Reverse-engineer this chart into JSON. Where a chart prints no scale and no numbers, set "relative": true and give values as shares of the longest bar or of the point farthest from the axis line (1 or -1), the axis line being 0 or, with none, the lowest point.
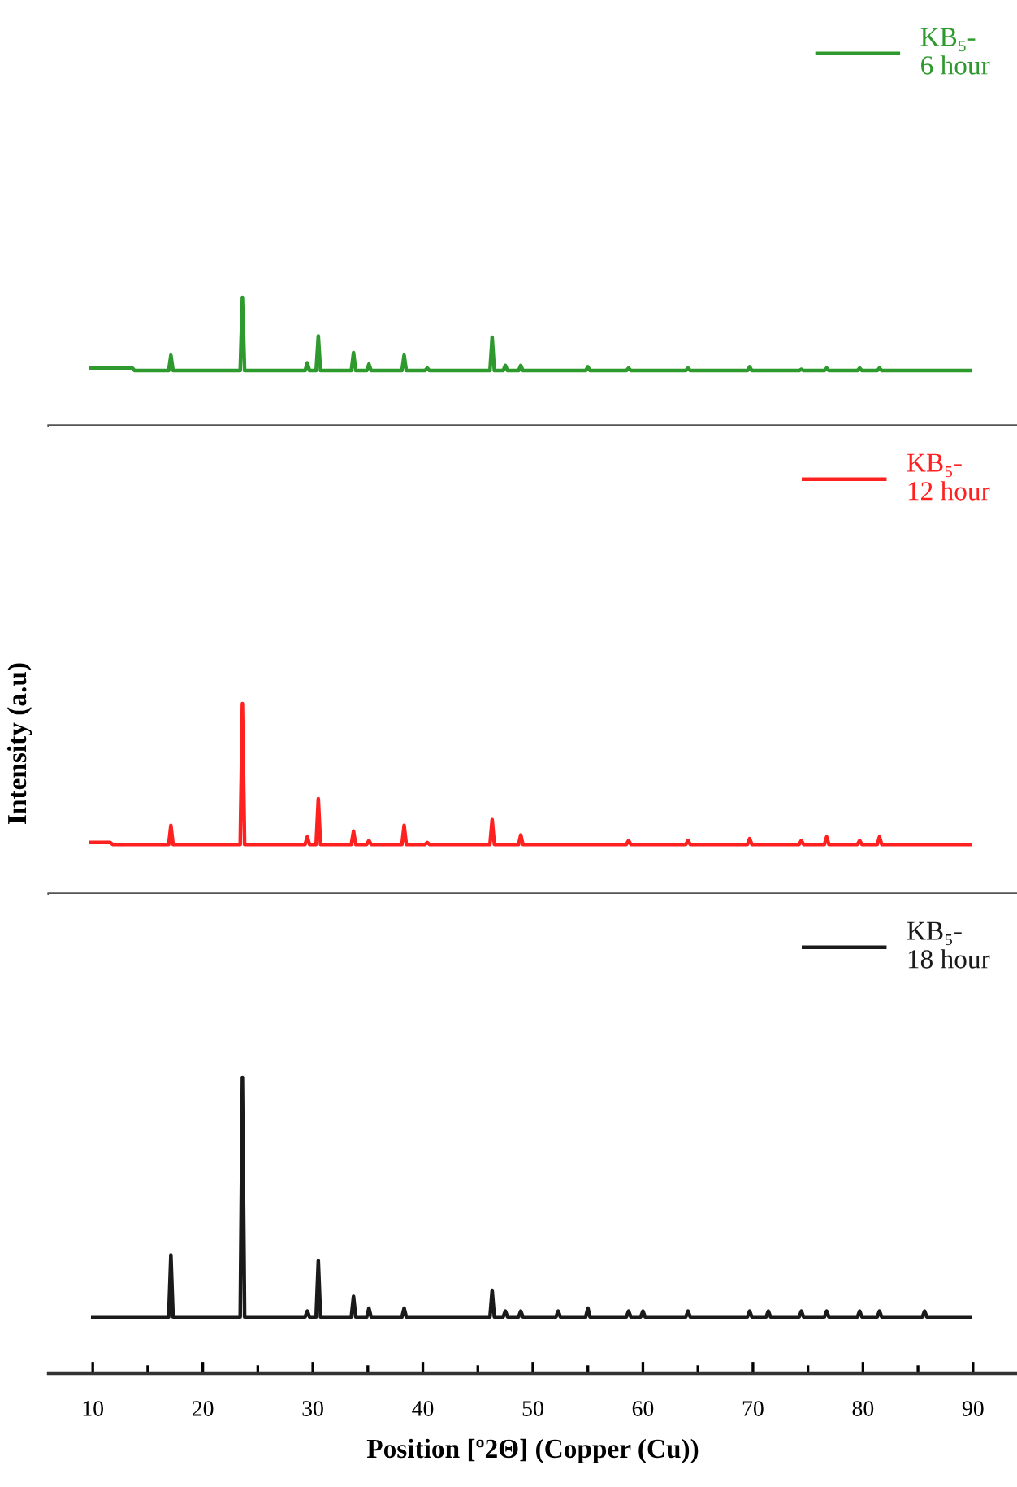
{
  "chart_data": [
    {
      "type": "line",
      "relative": true,
      "xlim": [
        6,
        94
      ],
      "tick_labels": false,
      "legend": "top right",
      "series": [
        {
          "name": "KB₅-\n6 hour",
          "color": "#2e9a2e",
          "x": [
            9.8,
            13.6,
            13.8,
            16.9,
            17.1,
            17.3,
            23.4,
            23.6,
            23.8,
            29.3,
            29.5,
            29.7,
            30.3,
            30.5,
            30.7,
            33.5,
            33.7,
            33.9,
            34.9,
            35.1,
            35.3,
            38.1,
            38.3,
            38.5,
            40.2,
            40.4,
            40.6,
            46.1,
            46.3,
            46.5,
            47.3,
            47.5,
            47.7,
            48.7,
            48.9,
            49.1,
            54.8,
            55.0,
            55.2,
            58.5,
            58.7,
            58.9,
            63.9,
            64.1,
            64.3,
            69.5,
            69.7,
            69.9,
            74.2,
            74.4,
            74.6,
            76.5,
            76.7,
            76.9,
            79.5,
            79.7,
            79.9,
            81.3,
            81.5,
            81.7,
            89.7
          ],
          "values": [
            0.45,
            0.45,
            0.43,
            0.43,
            0.55,
            0.43,
            0.43,
            1,
            0.43,
            0.43,
            0.49,
            0.43,
            0.43,
            0.7,
            0.43,
            0.43,
            0.57,
            0.43,
            0.43,
            0.48,
            0.43,
            0.43,
            0.55,
            0.43,
            0.43,
            0.45,
            0.43,
            0.43,
            0.69,
            0.43,
            0.43,
            0.47,
            0.43,
            0.43,
            0.47,
            0.43,
            0.43,
            0.46,
            0.43,
            0.43,
            0.45,
            0.43,
            0.43,
            0.45,
            0.43,
            0.43,
            0.46,
            0.43,
            0.43,
            0.44,
            0.43,
            0.43,
            0.45,
            0.43,
            0.43,
            0.45,
            0.43,
            0.43,
            0.45,
            0.43,
            0.43
          ]
        }
      ]
    },
    {
      "type": "line",
      "relative": true,
      "xlim": [
        6,
        94
      ],
      "tick_labels": false,
      "legend": "top right",
      "ylabel": "Intensity (a.u)",
      "series": [
        {
          "name": "KB₅-\n12 hour",
          "color": "#ff2020",
          "x": [
            9.8,
            11.6,
            11.8,
            16.9,
            17.1,
            17.3,
            23.4,
            23.6,
            23.8,
            29.3,
            29.5,
            29.7,
            30.3,
            30.5,
            30.7,
            33.5,
            33.7,
            33.9,
            34.9,
            35.1,
            35.3,
            38.1,
            38.3,
            38.5,
            40.2,
            40.4,
            40.6,
            46.1,
            46.3,
            46.5,
            48.7,
            48.9,
            49.1,
            58.5,
            58.7,
            58.9,
            63.9,
            64.1,
            64.3,
            69.5,
            69.7,
            69.9,
            74.2,
            74.4,
            74.6,
            76.5,
            76.7,
            76.9,
            79.5,
            79.7,
            79.9,
            81.3,
            81.5,
            81.7,
            89.7
          ],
          "values": [
            0.27,
            0.27,
            0.26,
            0.26,
            0.36,
            0.26,
            0.26,
            1,
            0.26,
            0.26,
            0.3,
            0.26,
            0.26,
            0.5,
            0.26,
            0.26,
            0.33,
            0.26,
            0.26,
            0.28,
            0.26,
            0.26,
            0.36,
            0.26,
            0.26,
            0.27,
            0.26,
            0.26,
            0.39,
            0.26,
            0.26,
            0.31,
            0.26,
            0.26,
            0.28,
            0.26,
            0.26,
            0.28,
            0.26,
            0.26,
            0.29,
            0.26,
            0.26,
            0.28,
            0.26,
            0.26,
            0.3,
            0.26,
            0.26,
            0.28,
            0.26,
            0.26,
            0.3,
            0.26,
            0.26
          ]
        }
      ]
    },
    {
      "type": "line",
      "relative": true,
      "xlim": [
        6,
        94
      ],
      "tick_labels": "x",
      "legend": "top right",
      "xlabel": "Position [º2Θ] (Copper (Cu))",
      "xticks": [
        10,
        {
          "value": 15,
          "label": null
        },
        20,
        {
          "value": 25,
          "label": null
        },
        30,
        {
          "value": 35,
          "label": null
        },
        40,
        {
          "value": 45,
          "label": null
        },
        50,
        {
          "value": 55,
          "label": null
        },
        60,
        {
          "value": 65,
          "label": null
        },
        70,
        {
          "value": 75,
          "label": null
        },
        80,
        {
          "value": 85,
          "label": null
        },
        90
      ],
      "series": [
        {
          "name": "KB₅-\n18 hour",
          "color": "#1a1a1a",
          "x": [
            10.0,
            16.9,
            17.1,
            17.3,
            23.4,
            23.6,
            23.8,
            29.3,
            29.5,
            29.7,
            30.3,
            30.5,
            30.7,
            33.5,
            33.7,
            33.9,
            34.9,
            35.1,
            35.3,
            38.1,
            38.3,
            38.5,
            46.1,
            46.3,
            46.5,
            47.3,
            47.5,
            47.7,
            48.7,
            48.9,
            49.1,
            52.1,
            52.3,
            52.5,
            54.8,
            55.0,
            55.2,
            58.5,
            58.7,
            58.9,
            59.8,
            60.0,
            60.2,
            63.9,
            64.1,
            64.3,
            69.5,
            69.7,
            69.9,
            71.2,
            71.4,
            71.6,
            74.2,
            74.4,
            74.6,
            76.5,
            76.7,
            76.9,
            79.5,
            79.7,
            79.9,
            81.3,
            81.5,
            81.7,
            85.4,
            85.6,
            85.8,
            89.7
          ],
          "values": [
            0.19,
            0.19,
            0.4,
            0.19,
            0.19,
            1,
            0.19,
            0.19,
            0.21,
            0.19,
            0.19,
            0.38,
            0.19,
            0.19,
            0.26,
            0.19,
            0.19,
            0.22,
            0.19,
            0.19,
            0.22,
            0.19,
            0.19,
            0.28,
            0.19,
            0.19,
            0.21,
            0.19,
            0.19,
            0.21,
            0.19,
            0.19,
            0.21,
            0.19,
            0.19,
            0.22,
            0.19,
            0.19,
            0.21,
            0.19,
            0.19,
            0.21,
            0.19,
            0.19,
            0.21,
            0.19,
            0.19,
            0.21,
            0.19,
            0.19,
            0.21,
            0.19,
            0.19,
            0.21,
            0.19,
            0.19,
            0.21,
            0.19,
            0.19,
            0.21,
            0.19,
            0.19,
            0.21,
            0.19,
            0.19,
            0.21,
            0.19,
            0.19
          ]
        }
      ]
    }
  ]
}
